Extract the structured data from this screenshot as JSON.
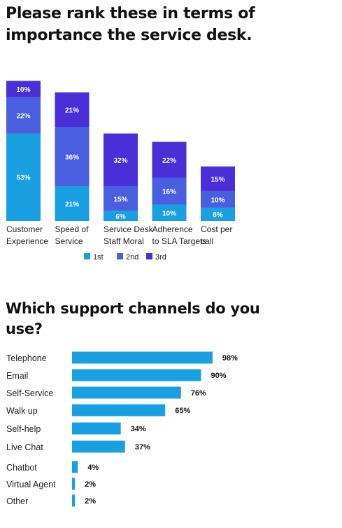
{
  "titles": {
    "ranking": "Please rank these in terms of importance the service desk.",
    "channels": "Which support channels do you use?"
  },
  "chart_data": [
    {
      "type": "bar",
      "stacked": true,
      "title": "Please rank these in terms of importance the service desk.",
      "categories": [
        [
          "Customer",
          "Experience"
        ],
        [
          "Speed of",
          "Service"
        ],
        [
          "Service Desk",
          "Staff Moral"
        ],
        [
          "Adherence",
          "to SLA Targets"
        ],
        [
          "Cost per",
          "call"
        ]
      ],
      "series": [
        {
          "name": "1st",
          "color": "#1aa0e0",
          "values": [
            53,
            21,
            6,
            10,
            8
          ],
          "labels": [
            "53%",
            "21%",
            "6%",
            "10%",
            "8%"
          ]
        },
        {
          "name": "2nd",
          "color": "#4a5ee0",
          "values": [
            22,
            36,
            15,
            16,
            10
          ],
          "labels": [
            "22%",
            "36%",
            "15%",
            "16%",
            "10%"
          ]
        },
        {
          "name": "3rd",
          "color": "#4a2fd8",
          "values": [
            10,
            21,
            32,
            22,
            15
          ],
          "labels": [
            "10%",
            "21%",
            "32%",
            "22%",
            "15%"
          ]
        }
      ],
      "legend": "bottom",
      "grid": false
    },
    {
      "type": "bar",
      "orientation": "horizontal",
      "title": "Which support channels do you use?",
      "color": "#1aa0e0",
      "categories": [
        "Telephone",
        "Email",
        "Self-Service",
        "Walk up",
        "Self-help",
        "Live Chat",
        "Chatbot",
        "Virtual Agent",
        "Other"
      ],
      "values": [
        98,
        90,
        76,
        65,
        34,
        37,
        4,
        2,
        2
      ],
      "labels": [
        "98%",
        "90%",
        "76%",
        "65%",
        "34%",
        "37%",
        "4%",
        "2%",
        "2%"
      ],
      "grid": false
    }
  ]
}
